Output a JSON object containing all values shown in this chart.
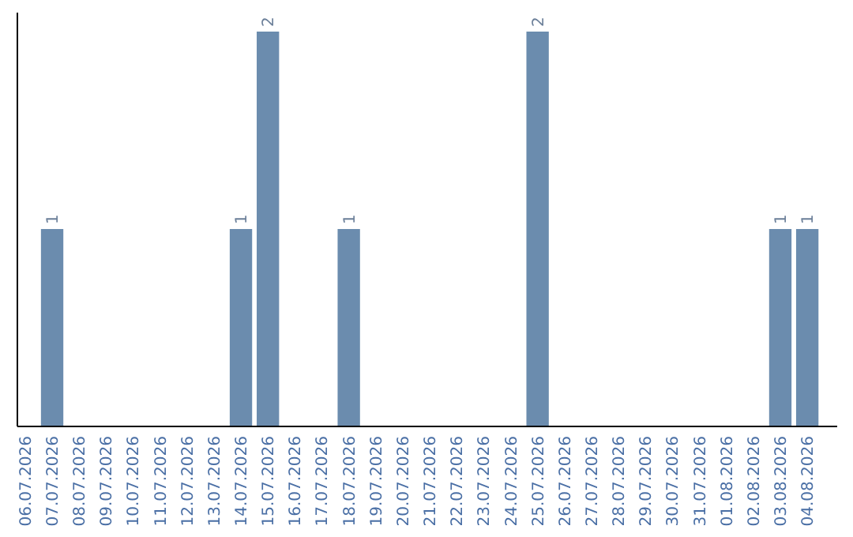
{
  "chart_data": {
    "type": "bar",
    "categories": [
      "06.07.2026",
      "07.07.2026",
      "08.07.2026",
      "09.07.2026",
      "10.07.2026",
      "11.07.2026",
      "12.07.2026",
      "13.07.2026",
      "14.07.2026",
      "15.07.2026",
      "16.07.2026",
      "17.07.2026",
      "18.07.2026",
      "19.07.2026",
      "20.07.2026",
      "21.07.2026",
      "22.07.2026",
      "23.07.2026",
      "24.07.2026",
      "25.07.2026",
      "26.07.2026",
      "27.07.2026",
      "28.07.2026",
      "29.07.2026",
      "30.07.2026",
      "31.07.2026",
      "01.08.2026",
      "02.08.2026",
      "03.08.2026",
      "04.08.2026"
    ],
    "values": [
      0,
      1,
      0,
      0,
      0,
      0,
      0,
      0,
      1,
      2,
      0,
      0,
      1,
      0,
      0,
      0,
      0,
      0,
      0,
      2,
      0,
      0,
      0,
      0,
      0,
      0,
      0,
      0,
      1,
      1
    ],
    "value_labels": [
      null,
      "1",
      null,
      null,
      null,
      null,
      null,
      null,
      "1",
      "2",
      null,
      null,
      "1",
      null,
      null,
      null,
      null,
      null,
      null,
      "2",
      null,
      null,
      null,
      null,
      null,
      null,
      null,
      null,
      "1",
      "1"
    ],
    "color": "#6b8cae"
  }
}
